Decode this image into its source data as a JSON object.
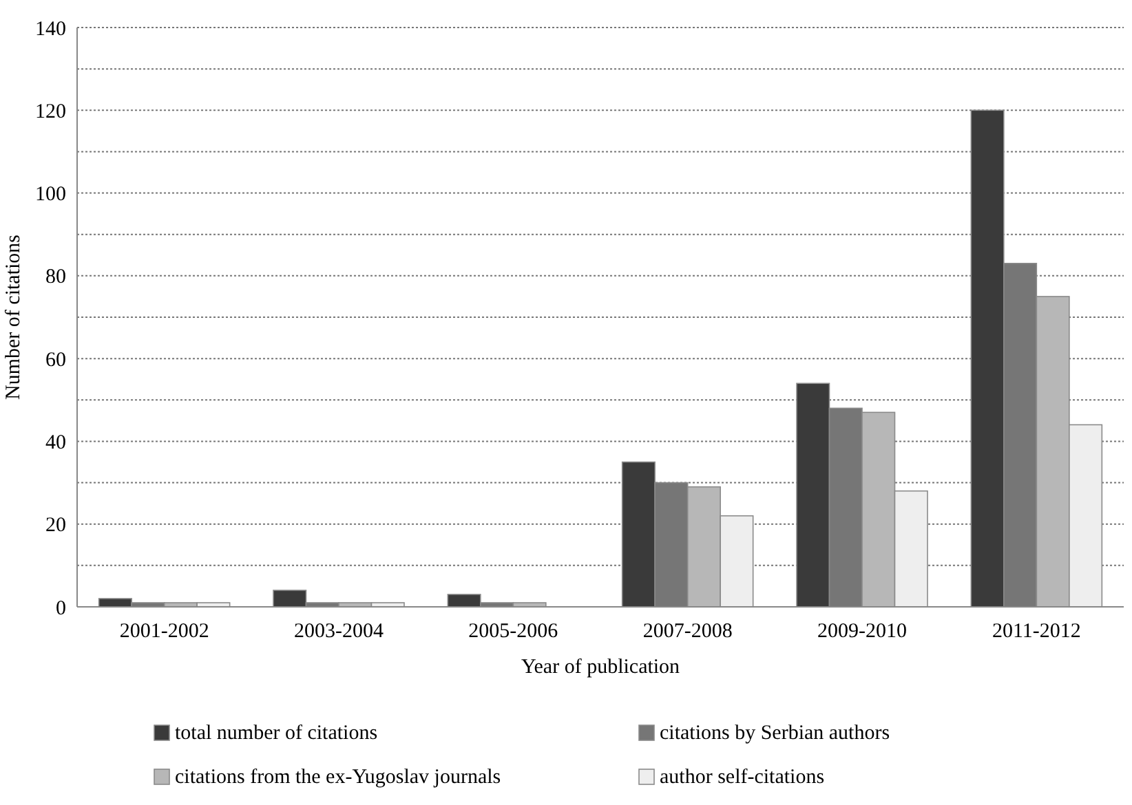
{
  "chart_data": {
    "type": "bar",
    "xlabel": "Year of publication",
    "ylabel": "Number of citations",
    "categories": [
      "2001-2002",
      "2003-2004",
      "2005-2006",
      "2007-2008",
      "2009-2010",
      "2011-2012"
    ],
    "series": [
      {
        "name": "total number of citations",
        "color": "#3a3a3a",
        "values": [
          2,
          4,
          3,
          35,
          54,
          120
        ]
      },
      {
        "name": "citations by Serbian authors",
        "color": "#767676",
        "values": [
          1,
          1,
          1,
          30,
          48,
          83
        ]
      },
      {
        "name": "citations from the ex-Yugoslav journals",
        "color": "#b7b7b7",
        "values": [
          1,
          1,
          1,
          29,
          47,
          75
        ]
      },
      {
        "name": "author self-citations",
        "color": "#eeeeee",
        "values": [
          1,
          1,
          0,
          22,
          28,
          44
        ]
      }
    ],
    "ylim": [
      0,
      140
    ],
    "yticks": [
      0,
      {
        "value": 10,
        "label": null
      },
      20,
      {
        "value": 30,
        "label": null
      },
      40,
      {
        "value": 50,
        "label": null
      },
      60,
      {
        "value": 70,
        "label": null
      },
      80,
      {
        "value": 90,
        "label": null
      },
      100,
      {
        "value": 110,
        "label": null
      },
      120,
      {
        "value": 130,
        "label": null
      },
      140
    ],
    "grid": "y",
    "legend": "bottom"
  }
}
